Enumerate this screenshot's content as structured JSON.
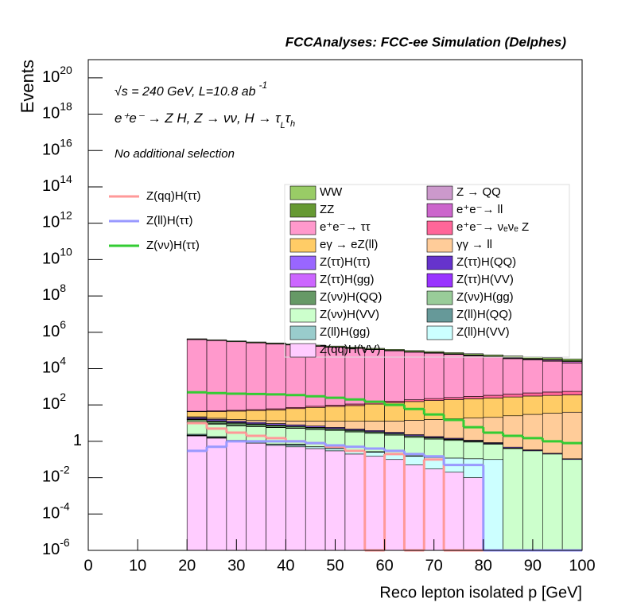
{
  "chart_data": {
    "type": "stacked-histogram",
    "log_y": true,
    "title": "FCCAnalyses: FCC-ee Simulation (Delphes)",
    "annotations": {
      "lumi": {
        "text": "√s = 240 GeV, L=10.8 ab",
        "sup": "-1"
      },
      "process": [
        {
          "text": "e⁺e⁻ → Z H, Z → νν, H → τ",
          "sub": "L"
        },
        {
          "text": "τ",
          "sub": "h"
        }
      ],
      "selection": "No additional selection"
    },
    "x_label": "Reco lepton isolated p [GeV]",
    "y_label": "Events",
    "xlim": [
      0,
      100
    ],
    "xticks": [
      0,
      10,
      20,
      30,
      40,
      50,
      60,
      70,
      80,
      90,
      100
    ],
    "ylim": [
      1e-06,
      1e+21
    ],
    "yticks": [
      {
        "value": 1e-06,
        "label": "10",
        "exponent": "-6"
      },
      {
        "value": 0.0001,
        "label": "10",
        "exponent": "-4"
      },
      {
        "value": 0.01,
        "label": "10",
        "exponent": "-2"
      },
      1,
      {
        "value": 100,
        "label": "10",
        "exponent": "2"
      },
      {
        "value": 10000.0,
        "label": "10",
        "exponent": "4"
      },
      {
        "value": 1000000.0,
        "label": "10",
        "exponent": "6"
      },
      {
        "value": 100000000.0,
        "label": "10",
        "exponent": "8"
      },
      {
        "value": 10000000000.0,
        "label": "10",
        "exponent": "10"
      },
      {
        "value": 1000000000000.0,
        "label": "10",
        "exponent": "12"
      },
      {
        "value": 100000000000000.0,
        "label": "10",
        "exponent": "14"
      },
      {
        "value": 1e+16,
        "label": "10",
        "exponent": "16"
      },
      {
        "value": 1e+18,
        "label": "10",
        "exponent": "18"
      },
      {
        "value": 1e+20,
        "label": "10",
        "exponent": "20"
      }
    ],
    "bins": [
      20,
      24,
      28,
      32,
      36,
      40,
      44,
      48,
      52,
      56,
      60,
      64,
      68,
      72,
      76,
      80,
      84,
      88,
      92,
      96,
      100
    ],
    "series": [
      {
        "name": "WW",
        "color": "#99cc66",
        "values": [
          30000,
          28000,
          26000,
          24000,
          22000,
          20000,
          18500,
          17000,
          15500,
          14000,
          13000,
          12000,
          11000,
          10000,
          9500,
          9000,
          8500,
          8000,
          7500,
          7000
        ]
      },
      {
        "name": "Z → QQ",
        "color": "#cc99cc",
        "values": [
          2000,
          1800,
          1600,
          1400,
          1300,
          1200,
          1100,
          1000,
          900,
          800,
          700,
          650,
          600,
          550,
          500,
          450,
          400,
          380,
          350,
          320
        ]
      },
      {
        "name": "ZZ",
        "color": "#669933",
        "values": [
          6000,
          5800,
          5600,
          5400,
          5200,
          5000,
          4800,
          4600,
          4400,
          4200,
          4000,
          3800,
          3600,
          3400,
          3200,
          3000,
          2800,
          2600,
          2400,
          2200
        ]
      },
      {
        "name": "e⁺e⁻→ ll",
        "color": "#cc66cc",
        "values": [
          300,
          350,
          400,
          450,
          500,
          600,
          700,
          800,
          900,
          1000,
          1200,
          1400,
          1600,
          1800,
          2000,
          2300,
          2600,
          3000,
          3500,
          4000
        ]
      },
      {
        "name": "e⁺e⁻→ ττ",
        "color": "#ff99cc",
        "values": [
          400000,
          350000,
          300000,
          260000,
          230000,
          200000,
          170000,
          150000,
          130000,
          110000,
          95000,
          80000,
          70000,
          60000,
          50000,
          42000,
          35000,
          30000,
          25000,
          20000
        ]
      },
      {
        "name": "e⁺e⁻→ νₑνₑ Z",
        "color": "#ff6699",
        "values": [
          3,
          4,
          5,
          6,
          8,
          10,
          12,
          15,
          20,
          25,
          30,
          40,
          50,
          60,
          80,
          100,
          120,
          150,
          180,
          200
        ]
      },
      {
        "name": "eγ → eZ(ll)",
        "color": "#ffcc66",
        "values": [
          20,
          25,
          30,
          35,
          40,
          50,
          60,
          70,
          80,
          100,
          120,
          140,
          160,
          180,
          200,
          220,
          250,
          280,
          300,
          320
        ]
      },
      {
        "name": "γγ → ll",
        "color": "#ffcc99",
        "values": [
          2,
          2.5,
          3,
          3.5,
          4,
          5,
          6,
          7,
          8,
          9,
          10,
          12,
          14,
          16,
          18,
          20,
          25,
          30,
          35,
          40
        ]
      },
      {
        "name": "Z(ττ)H(ττ)",
        "color": "#9966ff",
        "values": [
          3,
          2.5,
          2,
          1.8,
          1.5,
          1.2,
          1,
          0.8,
          0.6,
          0.5,
          0.4,
          0.3,
          0.2,
          0.15,
          0.1,
          0.08,
          0.05,
          0.03,
          0.02,
          0.01
        ]
      },
      {
        "name": "Z(ττ)H(QQ)",
        "color": "#6633cc",
        "values": [
          0.5,
          0.3,
          0.4,
          0.2,
          0.3,
          0.15,
          0.2,
          0.1,
          0.15,
          0.08,
          0.1,
          0.05,
          0.08,
          0.05,
          0.03,
          0.02,
          0,
          0,
          0,
          0
        ]
      },
      {
        "name": "Z(ττ)H(gg)",
        "color": "#cc66ff",
        "values": [
          0.8,
          0.5,
          0.3,
          0.2,
          0.15,
          0.1,
          0.08,
          0.05,
          0.03,
          0.02,
          0,
          0.01,
          0,
          0,
          0,
          0,
          0,
          0,
          0,
          0
        ]
      },
      {
        "name": "Z(ττ)H(VV)",
        "color": "#9933ff",
        "values": [
          0.6,
          0.4,
          0.3,
          0.25,
          0.2,
          0.15,
          0.1,
          0.08,
          0.05,
          0.04,
          0.03,
          0.02,
          0.02,
          0.01,
          0.01,
          0,
          0,
          0,
          0,
          0
        ]
      },
      {
        "name": "Z(νν)H(QQ)",
        "color": "#669966",
        "values": [
          4,
          3,
          2.5,
          2,
          1.5,
          1.2,
          1,
          0.8,
          0.6,
          0.5,
          0.4,
          0.3,
          0.2,
          0.15,
          0.1,
          0.05,
          0.03,
          0.01,
          0,
          0
        ]
      },
      {
        "name": "Z(νν)H(gg)",
        "color": "#99cc99",
        "values": [
          1,
          0.5,
          0.3,
          0.2,
          0.15,
          0.1,
          0.08,
          0.05,
          0.03,
          0.02,
          0.01,
          0,
          0,
          0,
          0,
          0,
          0,
          0,
          0,
          0
        ]
      },
      {
        "name": "Z(νν)H(VV)",
        "color": "#ccffcc",
        "values": [
          8,
          7,
          6,
          5.5,
          5,
          4.5,
          4,
          3.5,
          3,
          2.5,
          2,
          1.5,
          1.2,
          1,
          0.8,
          0.6,
          0.4,
          0.3,
          0.2,
          0.1
        ]
      },
      {
        "name": "Z(ll)H(QQ)",
        "color": "#669999",
        "values": [
          0.3,
          0.2,
          0.01,
          0.05,
          0.001,
          0.1,
          0.002,
          0.05,
          0.003,
          0.02,
          0.001,
          0.01,
          0.002,
          0,
          0,
          0,
          0,
          0,
          0,
          0
        ]
      },
      {
        "name": "Z(ll)H(gg)",
        "color": "#99cccc",
        "values": [
          0.05,
          0.02,
          0.03,
          0.01,
          0.01,
          0,
          0.005,
          0,
          0,
          0,
          0,
          0,
          0,
          0,
          0,
          0,
          0,
          0,
          0,
          0
        ]
      },
      {
        "name": "Z(ll)H(VV)",
        "color": "#ccffff",
        "values": [
          0.1,
          0.1,
          0.1,
          0.1,
          0.1,
          0.1,
          0.1,
          0.1,
          0.1,
          0.1,
          0.1,
          0.1,
          0.1,
          0.1,
          0.1,
          0.1,
          0,
          0,
          0,
          0
        ]
      },
      {
        "name": "Z(qq)H(VV)",
        "color": "#ffccff",
        "values": [
          2,
          1.5,
          1,
          0.8,
          0.6,
          0.5,
          0.4,
          0.3,
          0.2,
          0.15,
          0.1,
          0.05,
          0.03,
          0.02,
          0.01,
          0,
          0,
          0,
          0,
          0
        ]
      }
    ],
    "signals": [
      {
        "name": "Z(qq)H(ττ)",
        "color": "#ff9999",
        "values": [
          10,
          5,
          3,
          2,
          1.5,
          1,
          0.8,
          0.5,
          0.3,
          0,
          0.2,
          0,
          0.1,
          0,
          0,
          0,
          0,
          0,
          0,
          0
        ]
      },
      {
        "name": "Z(ll)H(ττ)",
        "color": "#9999ff",
        "values": [
          0.3,
          0.5,
          1,
          1,
          1,
          1,
          0.8,
          0.6,
          0.5,
          0.4,
          0.3,
          0.2,
          0.15,
          0.05,
          0.05,
          0,
          0,
          0,
          0,
          0
        ]
      },
      {
        "name": "Z(νν)H(ττ)",
        "color": "#33cc33",
        "values": [
          500,
          450,
          420,
          400,
          380,
          350,
          300,
          250,
          200,
          150,
          100,
          60,
          30,
          15,
          6,
          3,
          2,
          1.5,
          1,
          0.8
        ]
      }
    ]
  }
}
